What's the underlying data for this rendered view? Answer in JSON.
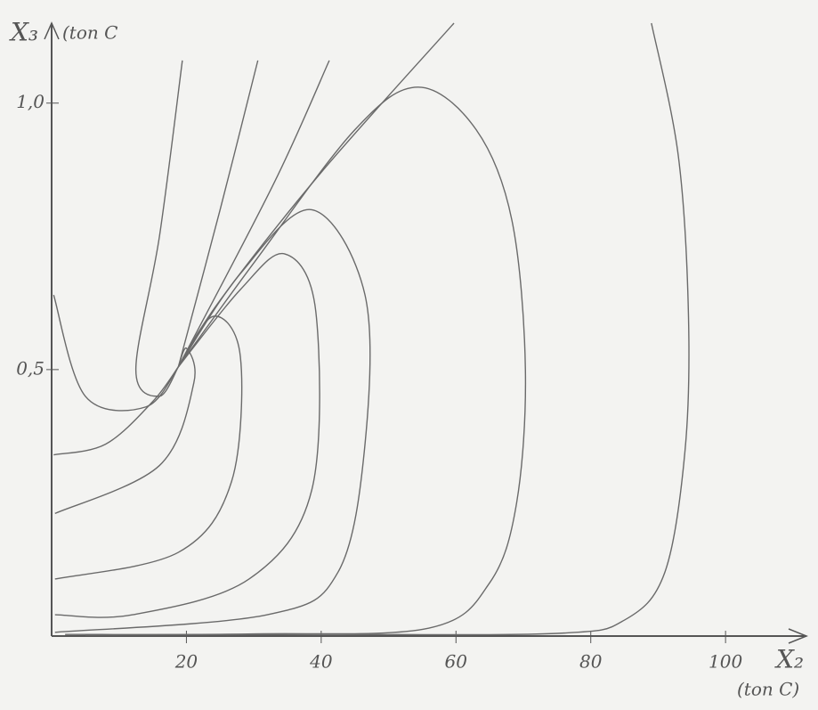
{
  "chart_data": {
    "type": "line",
    "x_label": "X₂",
    "x_unit": "(ton C)",
    "y_label": "X₃",
    "y_unit": "(ton C",
    "xlim": [
      0,
      112
    ],
    "ylim": [
      0,
      1.15
    ],
    "xticks": [
      20,
      40,
      60,
      80,
      100
    ],
    "yticks": [
      {
        "value": 0.5,
        "label": "0,5"
      },
      {
        "value": 1,
        "label": "1,0"
      }
    ],
    "color": "#6a6a6a",
    "series": [
      {
        "x": [
          89,
          93,
          94.5,
          94,
          91,
          85,
          75,
          40,
          5
        ],
        "y": [
          1.15,
          0.9,
          0.6,
          0.35,
          0.12,
          0.03,
          0.005,
          0.003,
          0.002
        ]
      },
      {
        "x": [
          59.7,
          40,
          25,
          18.8
        ],
        "y": [
          1.15,
          0.87,
          0.63,
          0.505
        ]
      },
      {
        "x": [
          18.8,
          30,
          45,
          54.4,
          63,
          68.3,
          70.3,
          69,
          65,
          56,
          30,
          2
        ],
        "y": [
          0.505,
          0.7,
          0.95,
          1.03,
          0.95,
          0.78,
          0.5,
          0.25,
          0.1,
          0.015,
          0.004,
          0.003
        ]
      },
      {
        "x": [
          18.8,
          28,
          38.6,
          46.5,
          46.5,
          42.5,
          32,
          0.5
        ],
        "y": [
          0.505,
          0.68,
          0.8,
          0.64,
          0.36,
          0.12,
          0.04,
          0.007
        ]
      },
      {
        "x": [
          18.8,
          28,
          34.6,
          39.2,
          38.6,
          29.3,
          12,
          0.5
        ],
        "y": [
          0.505,
          0.65,
          0.717,
          0.609,
          0.274,
          0.107,
          0.04,
          0.04
        ]
      },
      {
        "x": [
          18.8,
          24,
          28,
          26.7,
          18.8,
          0.5
        ],
        "y": [
          0.505,
          0.6,
          0.525,
          0.29,
          0.157,
          0.107
        ]
      },
      {
        "x": [
          18.8,
          20,
          21.1,
          16,
          0.5
        ],
        "y": [
          0.505,
          0.54,
          0.475,
          0.32,
          0.23
        ]
      },
      {
        "x": [
          19.4,
          16,
          12.5,
          16,
          18.8
        ],
        "y": [
          1.08,
          0.75,
          0.5,
          0.45,
          0.505
        ]
      },
      {
        "x": [
          30.6,
          25,
          18.8
        ],
        "y": [
          1.08,
          0.8,
          0.505
        ]
      },
      {
        "x": [
          41.2,
          33,
          18.8
        ],
        "y": [
          1.08,
          0.85,
          0.505
        ]
      },
      {
        "x": [
          0.3,
          5,
          14,
          18.8
        ],
        "y": [
          0.64,
          0.45,
          0.43,
          0.505
        ]
      },
      {
        "x": [
          0.3,
          8,
          15,
          18.8
        ],
        "y": [
          0.34,
          0.36,
          0.44,
          0.505
        ]
      }
    ]
  }
}
